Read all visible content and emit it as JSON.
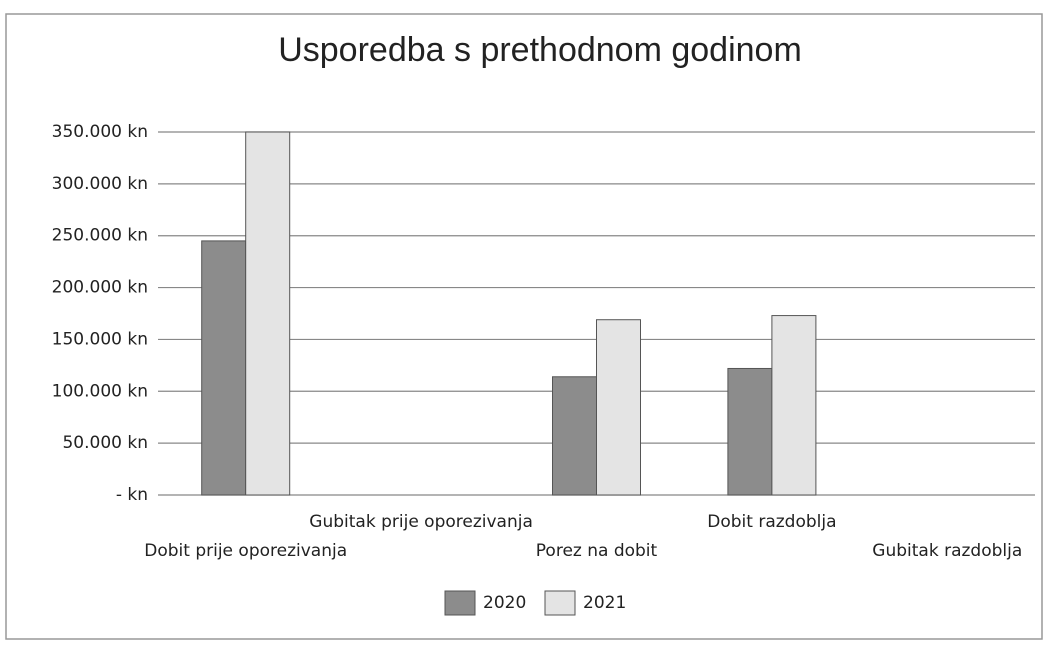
{
  "chart_data": {
    "type": "bar",
    "title": "Usporedba s prethodnom godinom",
    "categories": [
      "Dobit prije oporezivanja",
      "Gubitak prije oporezivanja",
      "Porez na dobit",
      "Dobit razdoblja",
      "Gubitak razdoblja"
    ],
    "series": [
      {
        "name": "2020",
        "color": "#8c8c8c",
        "values": [
          245000,
          0,
          114000,
          122000,
          0
        ]
      },
      {
        "name": "2021",
        "color": "#e4e4e4",
        "values": [
          350000,
          0,
          169000,
          173000,
          0
        ]
      }
    ],
    "ylim": [
      0,
      350000
    ],
    "yticks": [
      {
        "value": 0,
        "label": "- kn"
      },
      {
        "value": 50000,
        "label": "50.000 kn"
      },
      {
        "value": 100000,
        "label": "100.000 kn"
      },
      {
        "value": 150000,
        "label": "150.000 kn"
      },
      {
        "value": 200000,
        "label": "200.000 kn"
      },
      {
        "value": 250000,
        "label": "250.000 kn"
      },
      {
        "value": 300000,
        "label": "300.000 kn"
      },
      {
        "value": 350000,
        "label": "350.000 kn"
      }
    ],
    "grid": true,
    "legend": "bottom"
  }
}
